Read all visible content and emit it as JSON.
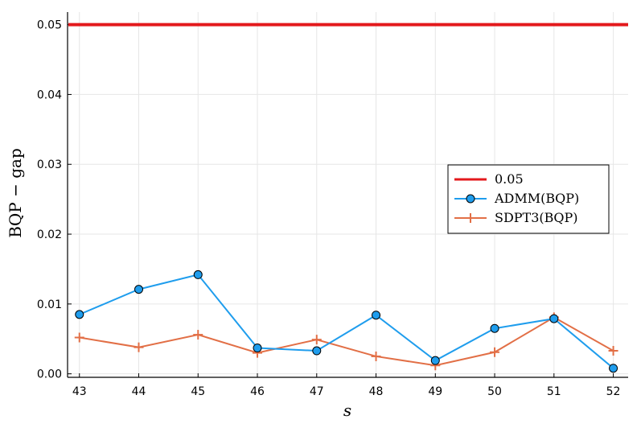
{
  "chart_data": {
    "type": "line",
    "xlabel": "s",
    "ylabel": "BQP − gap",
    "x": [
      43,
      44,
      45,
      46,
      47,
      48,
      49,
      50,
      51,
      52
    ],
    "xlim": [
      42.8,
      52.25
    ],
    "ylim": [
      -0.0005,
      0.0518
    ],
    "x_ticks": [
      "43",
      "44",
      "45",
      "46",
      "47",
      "48",
      "49",
      "50",
      "51",
      "52"
    ],
    "y_ticks": [
      {
        "value": 0.0,
        "label": "0.00"
      },
      {
        "value": 0.01,
        "label": "0.01"
      },
      {
        "value": 0.02,
        "label": "0.02"
      },
      {
        "value": 0.03,
        "label": "0.03"
      },
      {
        "value": 0.04,
        "label": "0.04"
      },
      {
        "value": 0.05,
        "label": "0.05"
      }
    ],
    "grid": true,
    "legend_position": "right",
    "series": [
      {
        "name": "0.05",
        "kind": "hline",
        "value": 0.05,
        "color": "#e3191c",
        "marker": "none"
      },
      {
        "name": "ADMM(BQP)",
        "kind": "line",
        "color": "#1f9ded",
        "marker": "circle",
        "values": [
          0.0085,
          0.0121,
          0.0142,
          0.0037,
          0.0033,
          0.0084,
          0.0019,
          0.0065,
          0.0079,
          0.0008
        ]
      },
      {
        "name": "SDPT3(BQP)",
        "kind": "line",
        "color": "#e26f46",
        "marker": "plus",
        "values": [
          0.0052,
          0.0038,
          0.0056,
          0.003,
          0.0049,
          0.0025,
          0.0012,
          0.0031,
          0.0081,
          0.0033
        ]
      }
    ]
  }
}
